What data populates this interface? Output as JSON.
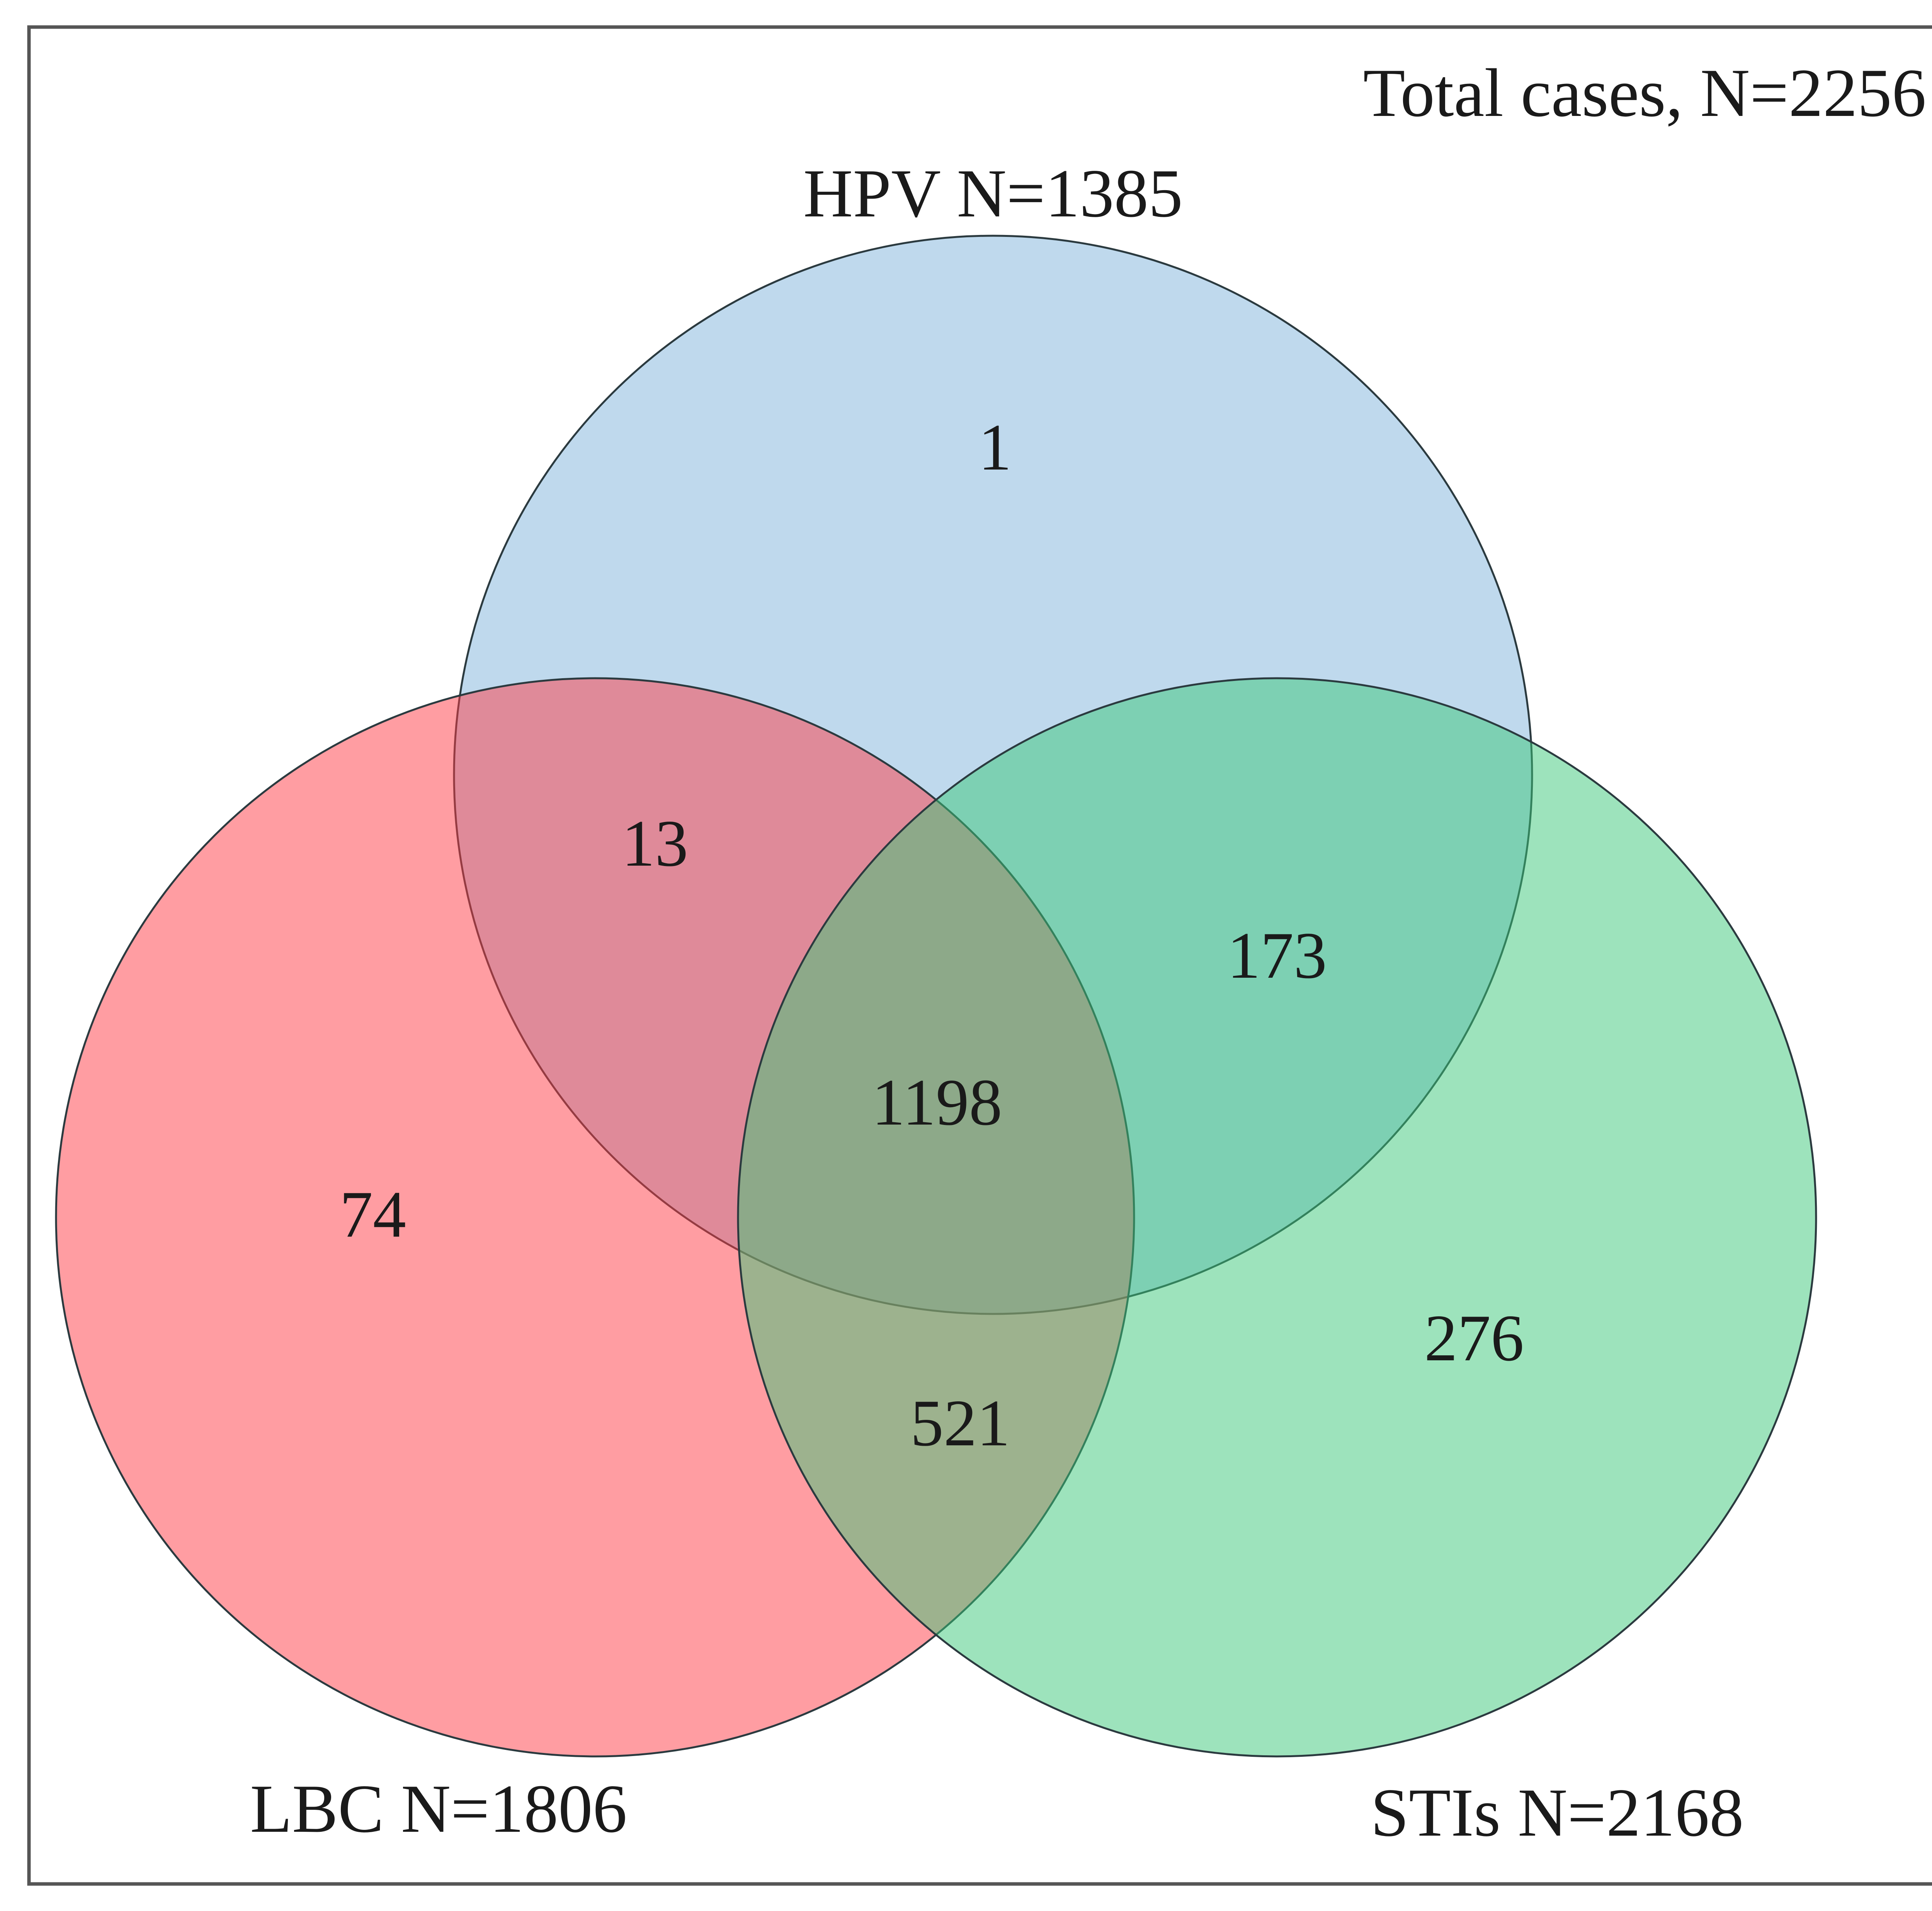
{
  "total_label": "Total cases, N=2256",
  "sets": [
    {
      "key": "hpv",
      "label": "HPV N=1385",
      "color": "#7fb3dc"
    },
    {
      "key": "lbc",
      "label": "LBC N=1806",
      "color": "#ff3b45"
    },
    {
      "key": "stis",
      "label": "STIs N=2168",
      "color": "#3bc77a"
    }
  ],
  "regions": {
    "hpv_only": "1",
    "hpv_lbc": "13",
    "hpv_stis": "173",
    "all_three": "1198",
    "lbc_only": "74",
    "lbc_stis": "521",
    "stis_only": "276"
  }
}
